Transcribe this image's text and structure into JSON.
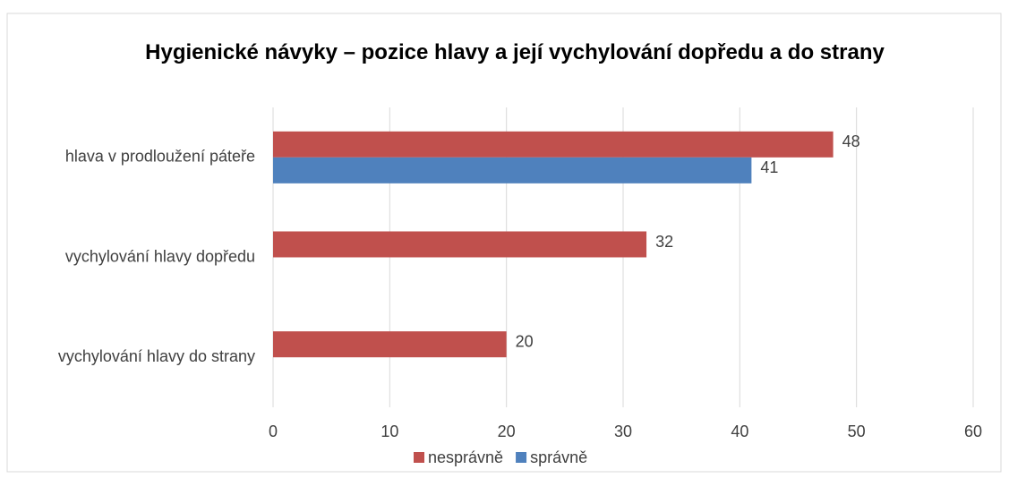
{
  "chart_data": {
    "type": "bar",
    "orientation": "horizontal",
    "title": "Hygienické návyky – pozice hlavy a její vychylování dopředu a do strany",
    "categories": [
      "hlava v prodloužení páteře",
      "vychylování hlavy dopředu",
      "vychylování hlavy do strany"
    ],
    "series": [
      {
        "name": "nesprávně",
        "color": "#c0504d",
        "values": [
          48,
          32,
          20
        ]
      },
      {
        "name": "správně",
        "color": "#4f81bd",
        "values": [
          41,
          null,
          null
        ]
      }
    ],
    "xlim": [
      0,
      60
    ],
    "xticks": [
      0,
      10,
      20,
      30,
      40,
      50,
      60
    ],
    "grid": true,
    "legend": "bottom"
  }
}
